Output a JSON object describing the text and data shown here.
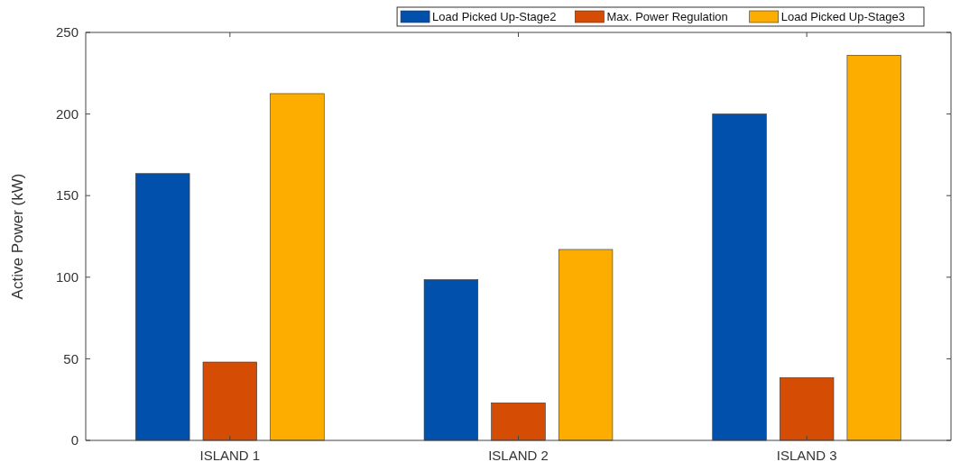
{
  "chart_data": {
    "type": "bar",
    "ylabel": "Active Power (kW)",
    "categories": [
      "ISLAND 1",
      "ISLAND 2",
      "ISLAND 3"
    ],
    "series": [
      {
        "name": "Load Picked Up-Stage2",
        "color": "#0050ac",
        "values": [
          163.5,
          98.5,
          200
        ]
      },
      {
        "name": "Max. Power Regulation",
        "color": "#d54c04",
        "values": [
          48,
          23,
          38.5
        ]
      },
      {
        "name": "Load Picked Up-Stage3",
        "color": "#fcad00",
        "values": [
          212.5,
          117,
          236
        ]
      }
    ],
    "ylim": [
      0,
      250
    ],
    "yticks": [
      0,
      50,
      100,
      150,
      200,
      250
    ],
    "grid": false,
    "legend": "top right"
  }
}
